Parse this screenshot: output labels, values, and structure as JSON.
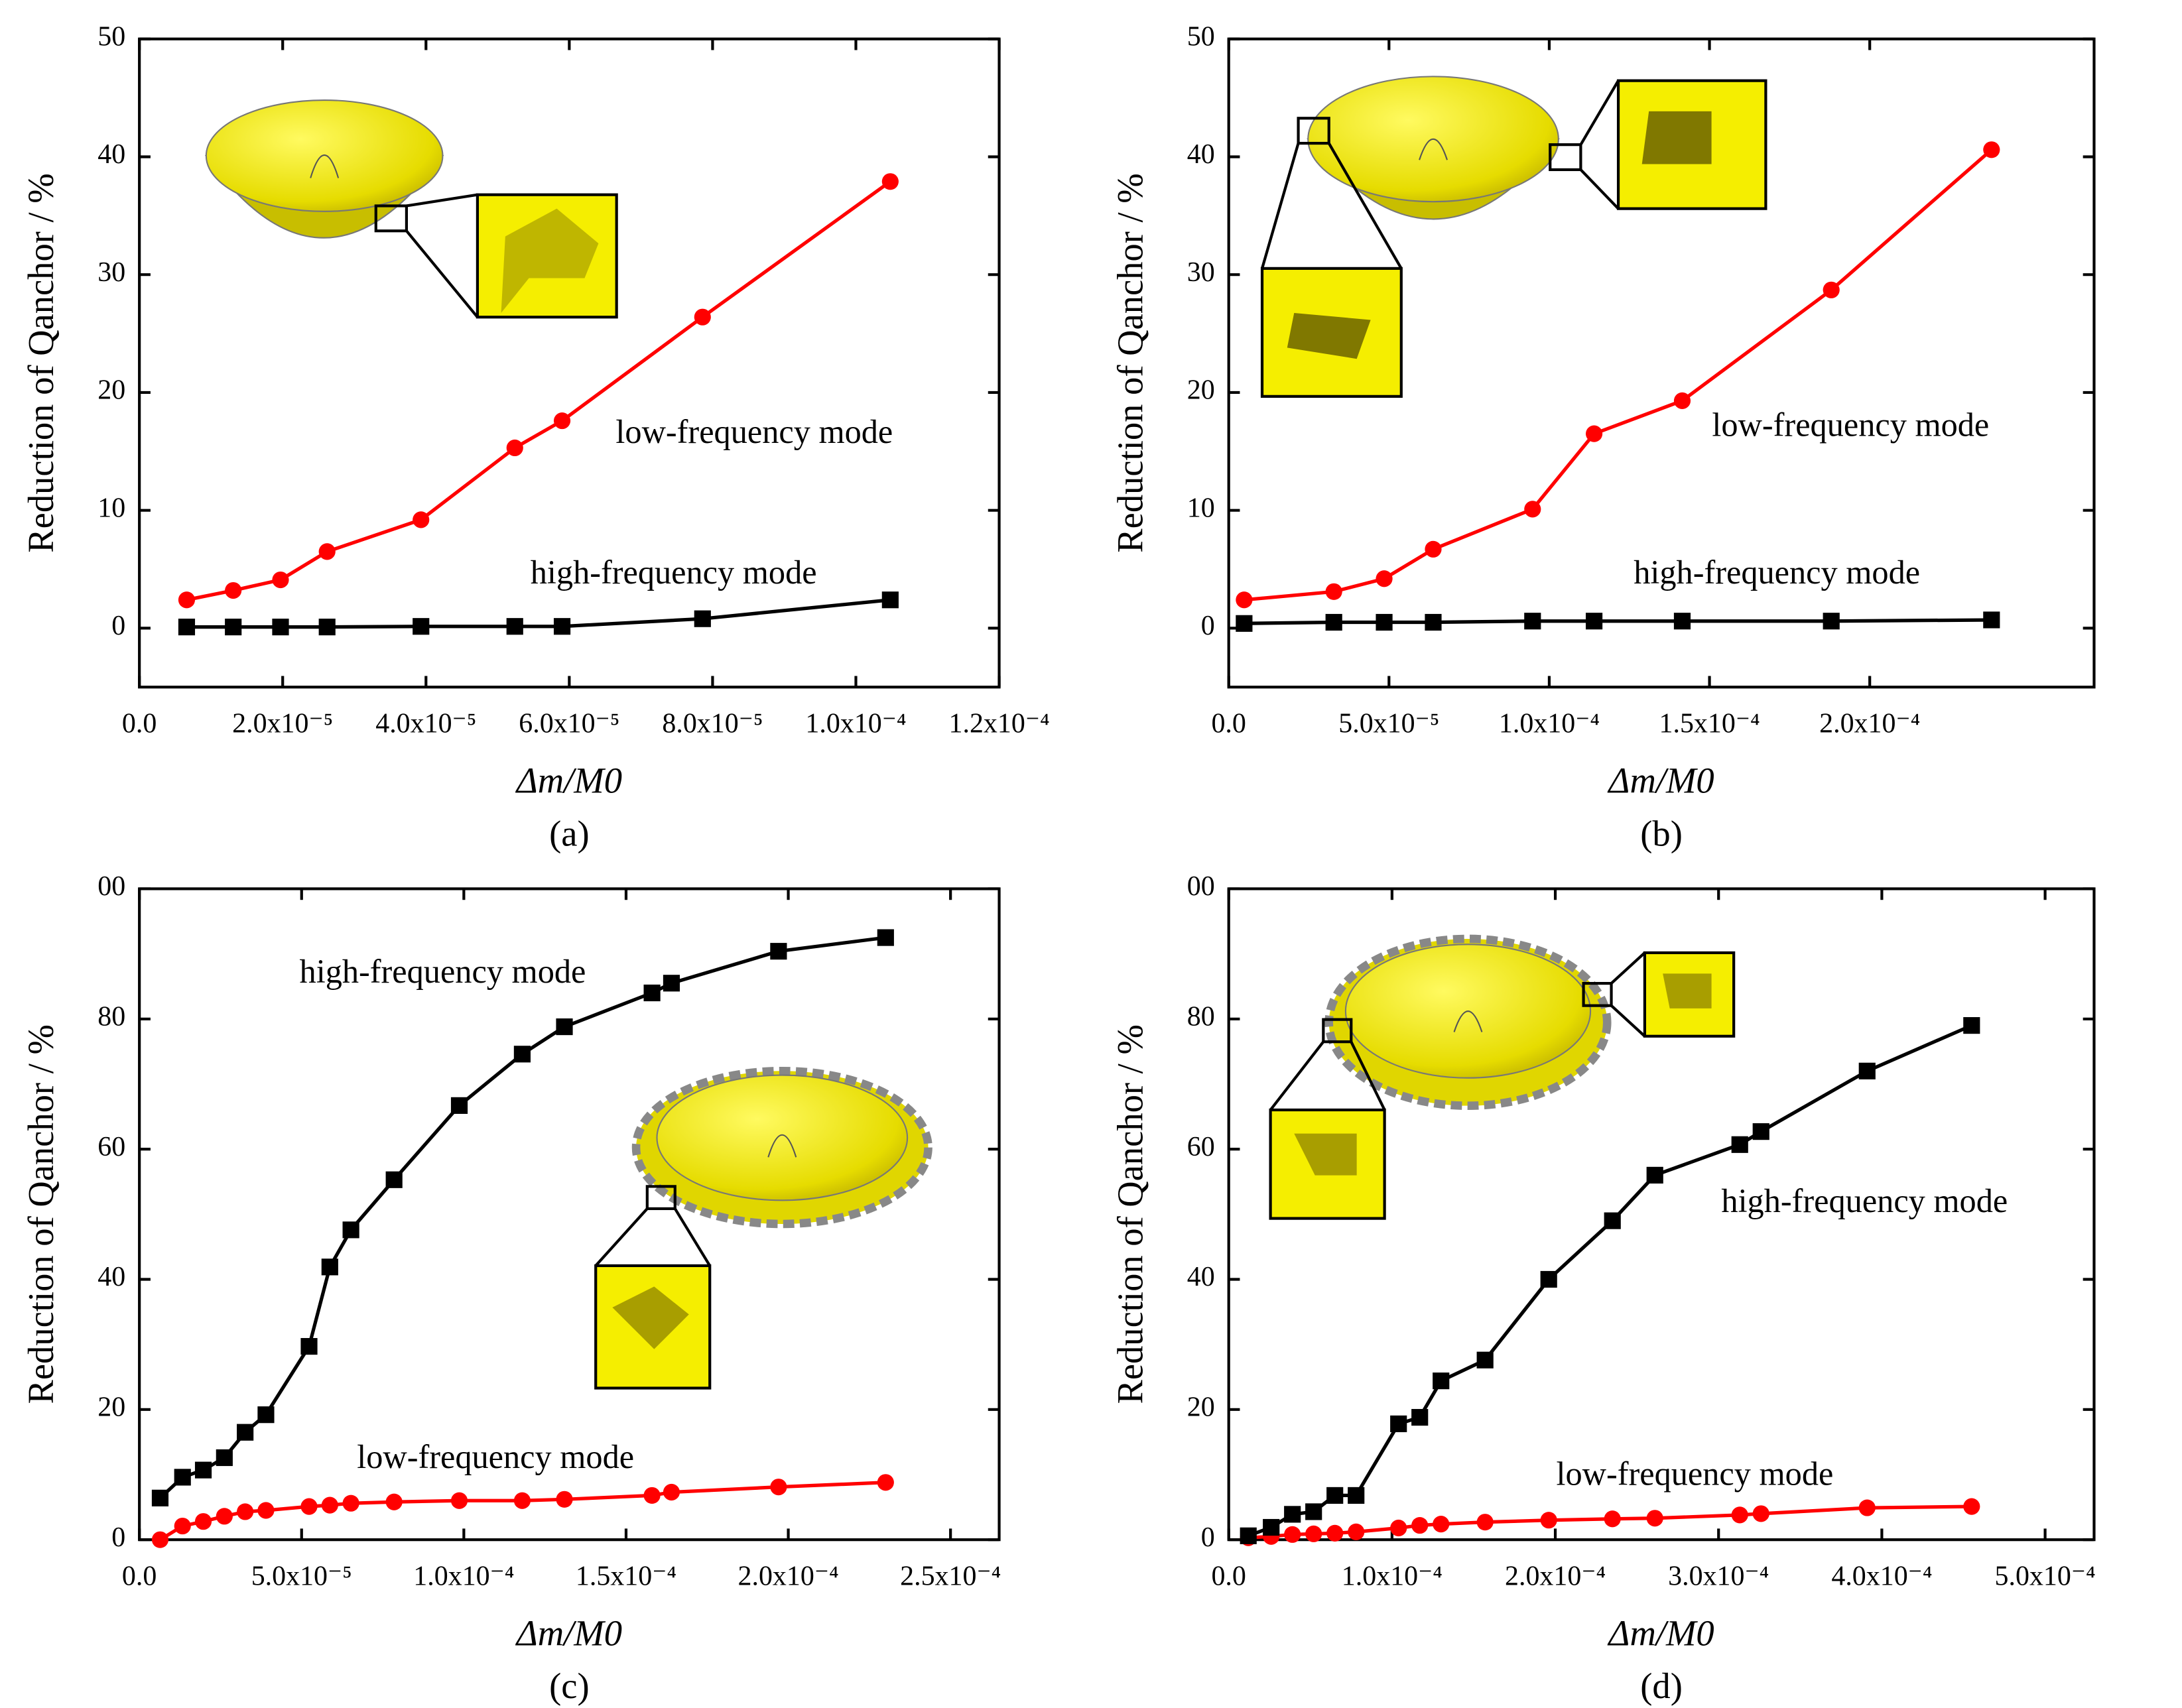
{
  "chart_data": [
    {
      "type": "line",
      "caption": "(a)",
      "x_label": "Δm/M0",
      "y_label": "Reduction of Qanchor / %",
      "x": [
        6.6e-06,
        1.31e-05,
        1.97e-05,
        2.62e-05,
        3.93e-05,
        5.24e-05,
        5.9e-05,
        7.86e-05,
        0.0001048
      ],
      "xlim": [
        0,
        0.00012
      ],
      "xticks": [
        {
          "value": 0,
          "label": "0.0"
        },
        {
          "value": 2e-05,
          "label": "2.0x10⁻⁵"
        },
        {
          "value": 4e-05,
          "label": "4.0x10⁻⁵"
        },
        {
          "value": 6e-05,
          "label": "6.0x10⁻⁵"
        },
        {
          "value": 8e-05,
          "label": "8.0x10⁻⁵"
        },
        {
          "value": 0.0001,
          "label": "1.0x10⁻⁴"
        },
        {
          "value": 0.00012,
          "label": "1.2x10⁻⁴"
        }
      ],
      "ylim": [
        -5,
        50
      ],
      "yticks": [
        0,
        10,
        20,
        30,
        40,
        50
      ],
      "series": [
        {
          "name": "low-frequency mode",
          "color": "#ff0000",
          "marker": "circle",
          "values": [
            2.4,
            3.2,
            4.1,
            6.5,
            9.2,
            15.3,
            17.6,
            26.4,
            37.9
          ]
        },
        {
          "name": "high-frequency mode",
          "color": "#000000",
          "marker": "square",
          "values": [
            0.1,
            0.1,
            0.1,
            0.1,
            0.15,
            0.15,
            0.15,
            0.8,
            2.4
          ]
        }
      ]
    },
    {
      "type": "line",
      "caption": "(b)",
      "x_label": "Δm/M0",
      "y_label": "Reduction of Qanchor / %",
      "x": [
        4.8e-06,
        3.28e-05,
        4.85e-05,
        6.38e-05,
        9.48e-05,
        0.000114,
        0.0001415,
        0.000188,
        0.000238
      ],
      "xlim": [
        0,
        0.00027
      ],
      "xticks": [
        {
          "value": 0,
          "label": "0.0"
        },
        {
          "value": 5e-05,
          "label": "5.0x10⁻⁵"
        },
        {
          "value": 0.0001,
          "label": "1.0x10⁻⁴"
        },
        {
          "value": 0.00015,
          "label": "1.5x10⁻⁴"
        },
        {
          "value": 0.0002,
          "label": "2.0x10⁻⁴"
        }
      ],
      "ylim": [
        -5,
        50
      ],
      "yticks": [
        0,
        10,
        20,
        30,
        40,
        50
      ],
      "series": [
        {
          "name": "low-frequency mode",
          "color": "#ff0000",
          "marker": "circle",
          "values": [
            2.4,
            3.1,
            4.2,
            6.7,
            10.1,
            16.5,
            19.3,
            28.7,
            40.6
          ]
        },
        {
          "name": "high-frequency mode",
          "color": "#000000",
          "marker": "square",
          "values": [
            0.4,
            0.5,
            0.5,
            0.5,
            0.6,
            0.6,
            0.6,
            0.6,
            0.7
          ]
        }
      ]
    },
    {
      "type": "line",
      "caption": "(c)",
      "x_label": "Δm/M0",
      "y_label": "Reduction of Qanchor / %",
      "x": [
        6.4e-06,
        1.33e-05,
        1.97e-05,
        2.62e-05,
        3.26e-05,
        3.9e-05,
        5.23e-05,
        5.87e-05,
        6.52e-05,
        7.85e-05,
        9.86e-05,
        0.000118,
        0.000131,
        0.000158,
        0.000164,
        0.000197,
        0.00023
      ],
      "xlim": [
        0,
        0.000265
      ],
      "xticks": [
        {
          "value": 0,
          "label": "0.0"
        },
        {
          "value": 5e-05,
          "label": "5.0x10⁻⁵"
        },
        {
          "value": 0.0001,
          "label": "1.0x10⁻⁴"
        },
        {
          "value": 0.00015,
          "label": "1.5x10⁻⁴"
        },
        {
          "value": 0.0002,
          "label": "2.0x10⁻⁴"
        },
        {
          "value": 0.00025,
          "label": "2.5x10⁻⁴"
        }
      ],
      "ylim": [
        0,
        100
      ],
      "yticks": [
        0,
        20,
        40,
        60,
        80,
        {
          "value": 100,
          "label": "00"
        }
      ],
      "series": [
        {
          "name": "low-frequency mode",
          "color": "#ff0000",
          "marker": "circle",
          "values": [
            0,
            2.1,
            2.8,
            3.6,
            4.3,
            4.5,
            5.1,
            5.3,
            5.6,
            5.8,
            6.0,
            6.0,
            6.2,
            6.8,
            7.3,
            8.1,
            8.8
          ]
        },
        {
          "name": "high-frequency mode",
          "color": "#000000",
          "marker": "square",
          "values": [
            6.4,
            9.6,
            10.7,
            12.6,
            16.5,
            19.2,
            29.7,
            41.9,
            47.6,
            55.3,
            66.7,
            74.6,
            78.8,
            84.0,
            85.5,
            90.4,
            92.5
          ]
        }
      ]
    },
    {
      "type": "line",
      "caption": "(d)",
      "x_label": "Δm/M0",
      "y_label": "Reduction of Qanchor / %",
      "x": [
        1.2e-05,
        2.6e-05,
        3.9e-05,
        5.2e-05,
        6.5e-05,
        7.8e-05,
        0.000104,
        0.000117,
        0.00013,
        0.000157,
        0.000196,
        0.000235,
        0.000261,
        0.000313,
        0.000326,
        0.000391,
        0.000455
      ],
      "xlim": [
        0,
        0.00053
      ],
      "xticks": [
        {
          "value": 0,
          "label": "0.0"
        },
        {
          "value": 0.0001,
          "label": "1.0x10⁻⁴"
        },
        {
          "value": 0.0002,
          "label": "2.0x10⁻⁴"
        },
        {
          "value": 0.0003,
          "label": "3.0x10⁻⁴"
        },
        {
          "value": 0.0004,
          "label": "4.0x10⁻⁴"
        },
        {
          "value": 0.0005,
          "label": "5.0x10⁻⁴"
        }
      ],
      "ylim": [
        0,
        100
      ],
      "yticks": [
        0,
        20,
        40,
        60,
        80,
        {
          "value": 100,
          "label": "00"
        }
      ],
      "series": [
        {
          "name": "low-frequency mode",
          "color": "#ff0000",
          "marker": "circle",
          "values": [
            0.3,
            0.5,
            0.8,
            0.9,
            1.0,
            1.2,
            1.8,
            2.2,
            2.4,
            2.7,
            3.0,
            3.2,
            3.3,
            3.8,
            4.0,
            4.9,
            5.1
          ]
        },
        {
          "name": "high-frequency mode",
          "color": "#000000",
          "marker": "square",
          "values": [
            0.6,
            1.9,
            3.9,
            4.3,
            6.8,
            6.8,
            17.8,
            18.8,
            24.4,
            27.6,
            40.0,
            49.0,
            56.0,
            60.7,
            62.7,
            72.0,
            79.0
          ]
        }
      ]
    }
  ]
}
